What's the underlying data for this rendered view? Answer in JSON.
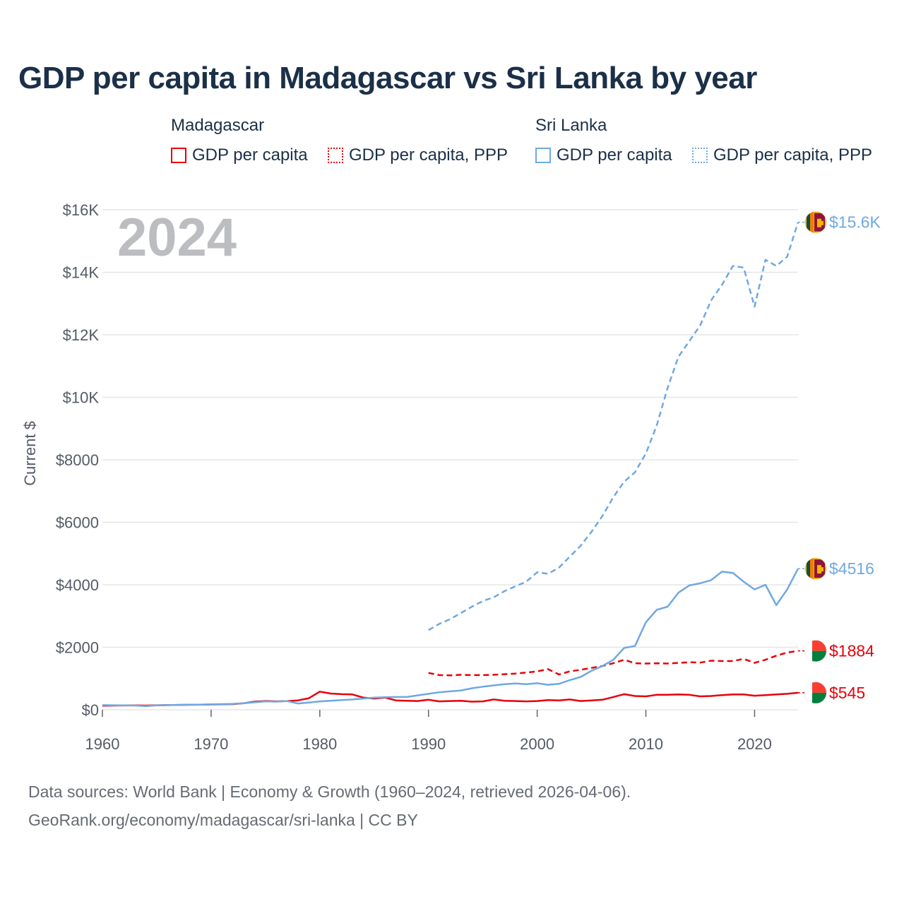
{
  "chart_data": {
    "type": "line",
    "title": "GDP per capita in Madagascar vs Sri Lanka by year",
    "year_label": "2024",
    "ylabel": "Current $",
    "xlabel": "",
    "xlim": [
      1960,
      2024
    ],
    "ylim": [
      0,
      16000
    ],
    "x_ticks": [
      1960,
      1970,
      1980,
      1990,
      2000,
      2010,
      2020
    ],
    "x_tick_labels": [
      "1960",
      "1970",
      "1980",
      "1990",
      "2000",
      "2010",
      "2020"
    ],
    "y_ticks": [
      0,
      2000,
      4000,
      6000,
      8000,
      10000,
      12000,
      14000,
      16000
    ],
    "y_tick_labels": [
      "$0",
      "$2000",
      "$4000",
      "$6000",
      "$8000",
      "$10K",
      "$12K",
      "$14K",
      "$16K"
    ],
    "grid": true,
    "legend": {
      "groups": [
        {
          "name": "Madagascar",
          "items": [
            "GDP per capita",
            "GDP per capita, PPP"
          ]
        },
        {
          "name": "Sri Lanka",
          "items": [
            "GDP per capita",
            "GDP per capita, PPP"
          ]
        }
      ]
    },
    "series": [
      {
        "name": "Madagascar GDP per capita",
        "country": "Madagascar",
        "color": "#e8000b",
        "dash": "solid",
        "end_label": "$545",
        "start_year": 1960,
        "values": [
          130,
          135,
          138,
          140,
          135,
          145,
          150,
          155,
          160,
          165,
          170,
          175,
          180,
          210,
          260,
          280,
          270,
          280,
          300,
          370,
          580,
          520,
          500,
          490,
          390,
          360,
          390,
          300,
          290,
          280,
          320,
          270,
          280,
          290,
          260,
          270,
          330,
          290,
          280,
          270,
          280,
          310,
          300,
          330,
          280,
          300,
          320,
          410,
          500,
          440,
          430,
          480,
          480,
          490,
          480,
          430,
          440,
          470,
          490,
          490,
          450,
          470,
          490,
          510,
          545
        ]
      },
      {
        "name": "Madagascar GDP per capita, PPP",
        "country": "Madagascar",
        "color": "#e8000b",
        "dash": "dashed",
        "end_label": "$1884",
        "start_year": 1990,
        "values": [
          1180,
          1110,
          1100,
          1120,
          1110,
          1110,
          1120,
          1140,
          1160,
          1190,
          1230,
          1300,
          1130,
          1230,
          1280,
          1340,
          1400,
          1490,
          1600,
          1490,
          1480,
          1490,
          1480,
          1500,
          1520,
          1510,
          1570,
          1560,
          1560,
          1630,
          1500,
          1600,
          1730,
          1830,
          1884
        ]
      },
      {
        "name": "Sri Lanka GDP per capita",
        "country": "Sri Lanka",
        "color": "#6fa8e3",
        "dash": "solid",
        "end_label": "$4516",
        "start_year": 1960,
        "values": [
          150,
          145,
          140,
          135,
          120,
          140,
          150,
          155,
          160,
          165,
          175,
          180,
          190,
          210,
          240,
          270,
          260,
          280,
          200,
          230,
          270,
          290,
          310,
          330,
          360,
          390,
          400,
          410,
          410,
          460,
          510,
          560,
          590,
          620,
          690,
          740,
          780,
          820,
          840,
          820,
          850,
          800,
          830,
          950,
          1050,
          1250,
          1400,
          1600,
          1980,
          2040,
          2800,
          3200,
          3300,
          3750,
          3980,
          4050,
          4150,
          4420,
          4380,
          4100,
          3850,
          4000,
          3350,
          3850,
          4516
        ]
      },
      {
        "name": "Sri Lanka GDP per capita, PPP",
        "country": "Sri Lanka",
        "color": "#6fa8e3",
        "dash": "dashed",
        "end_label": "$15.6K",
        "start_year": 1990,
        "values": [
          2550,
          2750,
          2900,
          3100,
          3300,
          3480,
          3600,
          3800,
          3950,
          4100,
          4400,
          4350,
          4550,
          4900,
          5250,
          5700,
          6200,
          6800,
          7300,
          7600,
          8200,
          9100,
          10300,
          11300,
          11800,
          12300,
          13100,
          13600,
          14200,
          14150,
          12900,
          14400,
          14200,
          14500,
          15600
        ]
      }
    ]
  },
  "source": {
    "line1": "Data sources: World Bank | Economy & Growth (1960–2024, retrieved 2026-04-06).",
    "line2": "GeoRank.org/economy/madagascar/sri-lanka | CC BY"
  }
}
